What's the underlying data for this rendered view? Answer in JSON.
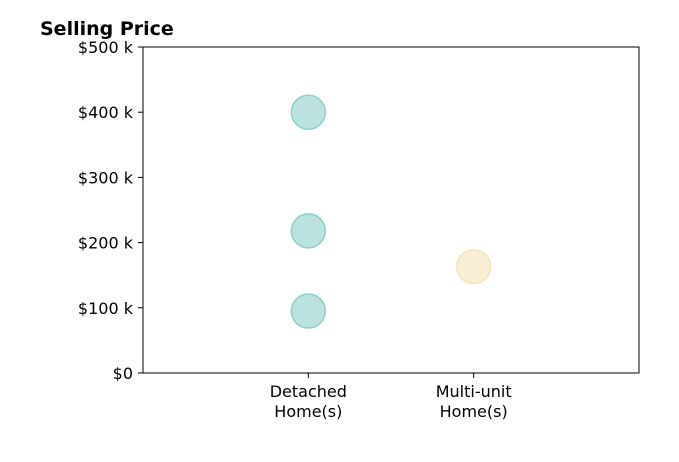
{
  "chart_data": {
    "type": "scatter",
    "title": "Selling Price",
    "xlabel": "",
    "ylabel": "",
    "categories": [
      [
        "Detached",
        "Home(s)"
      ],
      [
        "Multi-unit",
        "Home(s)"
      ]
    ],
    "x_range": [
      -1,
      2
    ],
    "ylim": [
      0,
      500000
    ],
    "y_ticks": [
      0,
      100000,
      200000,
      300000,
      400000,
      500000
    ],
    "y_tick_labels": [
      "$0",
      "$100 k",
      "$200 k",
      "$300 k",
      "$400 k",
      "$500 k"
    ],
    "grid": false,
    "legend": "none",
    "series": [
      {
        "color": "#8ecfc9",
        "points": [
          {
            "category": 0,
            "y": 400000
          },
          {
            "category": 0,
            "y": 218000
          },
          {
            "category": 0,
            "y": 95000
          }
        ]
      },
      {
        "color": "#f5e2b8",
        "points": [
          {
            "category": 1,
            "y": 163000
          }
        ]
      }
    ]
  }
}
